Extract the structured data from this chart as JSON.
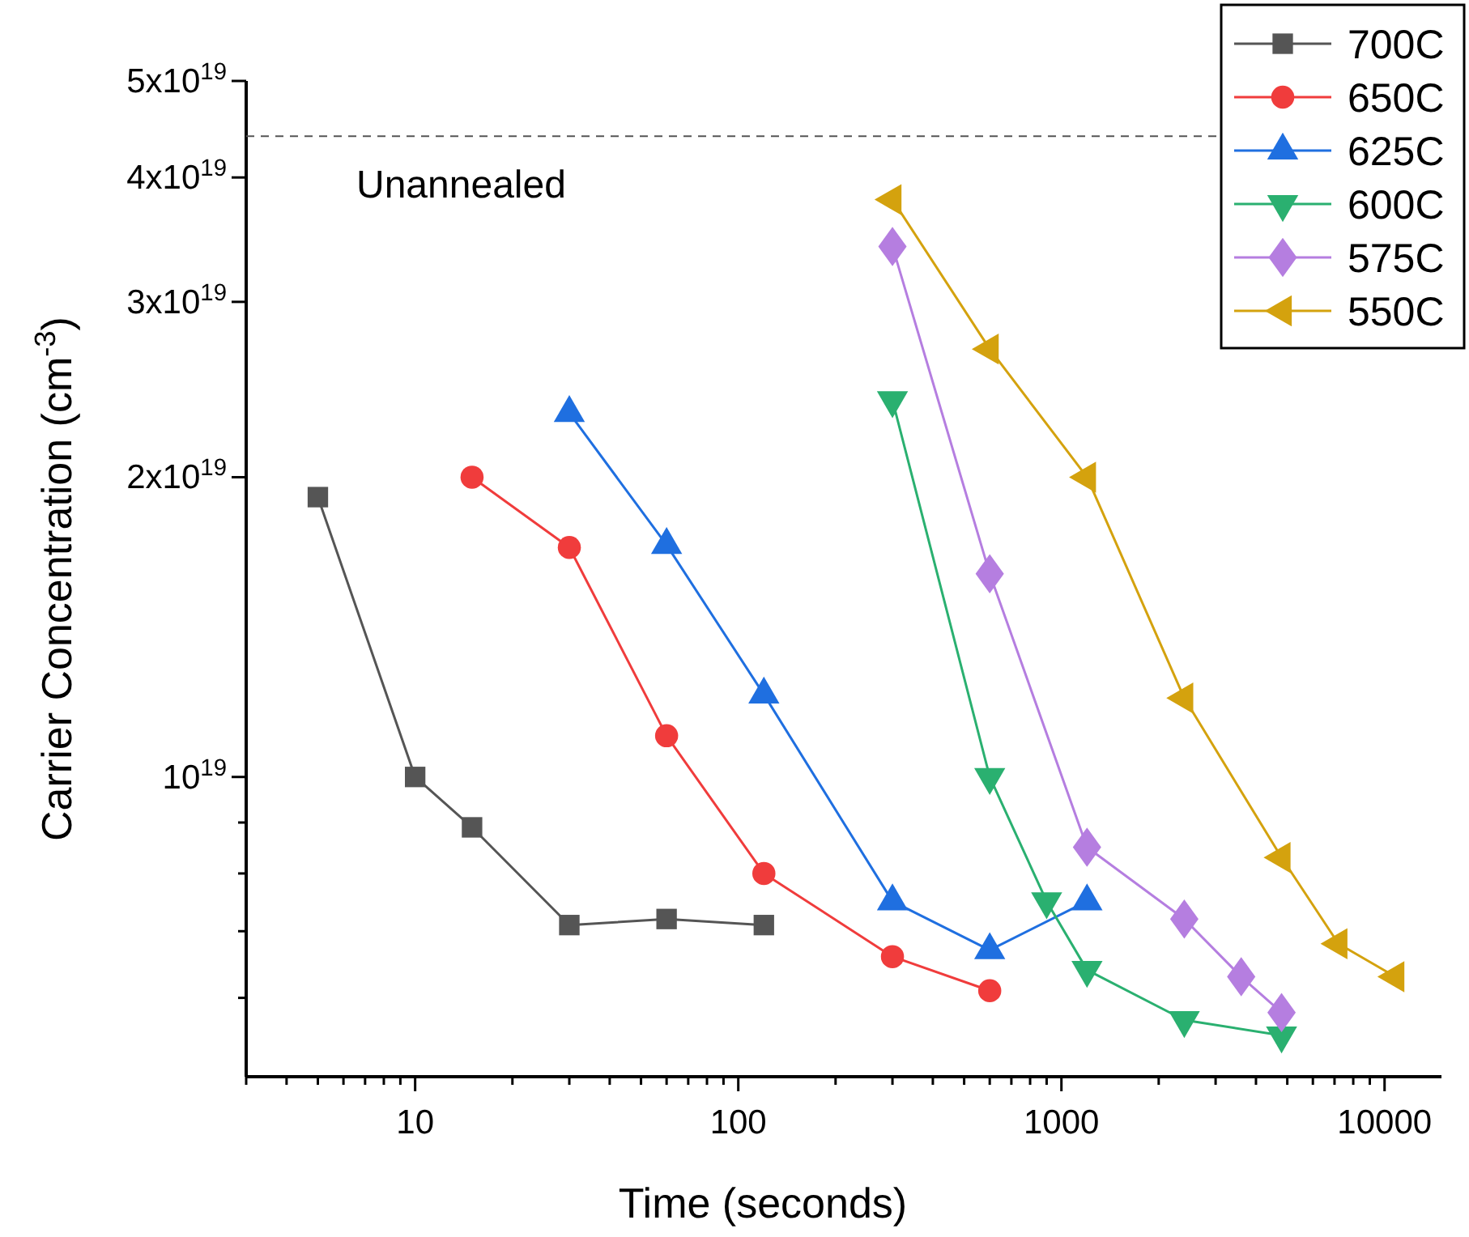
{
  "chart_data": {
    "type": "line",
    "xlabel": "Time (seconds)",
    "ylabel": "Carrier Concentration (cm$^{-3}$)",
    "log": "xy",
    "legend": "top right",
    "grid": false,
    "line_style": "solid",
    "xlim": [
      3,
      15000
    ],
    "ylim": [
      5e+18,
      5e+19
    ],
    "xticks": [
      {
        "value": 3,
        "label": null
      },
      {
        "value": 4,
        "label": null
      },
      {
        "value": 5,
        "label": null
      },
      {
        "value": 6,
        "label": null
      },
      {
        "value": 7,
        "label": null
      },
      {
        "value": 8,
        "label": null
      },
      {
        "value": 9,
        "label": null
      },
      10,
      {
        "value": 20,
        "label": null
      },
      {
        "value": 30,
        "label": null
      },
      {
        "value": 40,
        "label": null
      },
      {
        "value": 50,
        "label": null
      },
      {
        "value": 60,
        "label": null
      },
      {
        "value": 70,
        "label": null
      },
      {
        "value": 80,
        "label": null
      },
      {
        "value": 90,
        "label": null
      },
      100,
      {
        "value": 200,
        "label": null
      },
      {
        "value": 300,
        "label": null
      },
      {
        "value": 400,
        "label": null
      },
      {
        "value": 500,
        "label": null
      },
      {
        "value": 600,
        "label": null
      },
      {
        "value": 700,
        "label": null
      },
      {
        "value": 800,
        "label": null
      },
      {
        "value": 900,
        "label": null
      },
      1000,
      {
        "value": 2000,
        "label": null
      },
      {
        "value": 3000,
        "label": null
      },
      {
        "value": 4000,
        "label": null
      },
      {
        "value": 5000,
        "label": null
      },
      {
        "value": 6000,
        "label": null
      },
      {
        "value": 7000,
        "label": null
      },
      {
        "value": 8000,
        "label": null
      },
      {
        "value": 9000,
        "label": null
      },
      10000
    ],
    "yticks": [
      {
        "value": 6e+18,
        "label": null
      },
      {
        "value": 7e+18,
        "label": null
      },
      {
        "value": 8e+18,
        "label": null
      },
      {
        "value": 9e+18,
        "label": null
      },
      {
        "value": 1e+19,
        "label": "10$^{19}$"
      },
      {
        "value": 2e+19,
        "label": "2x10$^{19}$"
      },
      {
        "value": 3e+19,
        "label": "3x10$^{19}$"
      },
      {
        "value": 4e+19,
        "label": "4x10$^{19}$"
      },
      {
        "value": 5e+19,
        "label": "5x10$^{19}$"
      }
    ],
    "ref_lines": [
      {
        "axis": "y",
        "value": 4.4e+19,
        "label": "Unannealed",
        "line_style": "dashed",
        "color": "#555555"
      }
    ],
    "series": [
      {
        "name": "700C",
        "color": "#555555",
        "marker": "square",
        "x": [
          5,
          10,
          15,
          30,
          60,
          120
        ],
        "values": [
          1.91e+19,
          1e+19,
          8.9e+18,
          7.1e+18,
          7.2e+18,
          7.1e+18
        ]
      },
      {
        "name": "650C",
        "color": "#f03c3c",
        "marker": "circle",
        "x": [
          15,
          30,
          60,
          120,
          300,
          600
        ],
        "values": [
          2e+19,
          1.7e+19,
          1.1e+19,
          8e+18,
          6.6e+18,
          6.1e+18
        ]
      },
      {
        "name": "625C",
        "color": "#1f6fe0",
        "marker": "triangle",
        "x": [
          30,
          60,
          120,
          300,
          600,
          1200
        ],
        "values": [
          2.32e+19,
          1.71e+19,
          1.21e+19,
          7.5e+18,
          6.7e+18,
          7.5e+18
        ]
      },
      {
        "name": "600C",
        "color": "#2ab070",
        "marker": "triangle-down",
        "x": [
          300,
          600,
          900,
          1200,
          2400,
          4800
        ],
        "values": [
          2.39e+19,
          1e+19,
          7.5e+18,
          6.4e+18,
          5.7e+18,
          5.5e+18
        ]
      },
      {
        "name": "575C",
        "color": "#b57ee0",
        "marker": "diamond",
        "x": [
          300,
          600,
          1200,
          2400,
          3600,
          4800
        ],
        "values": [
          3.41e+19,
          1.6e+19,
          8.5e+18,
          7.2e+18,
          6.3e+18,
          5.8e+18
        ]
      },
      {
        "name": "550C",
        "color": "#d4a20e",
        "marker": "triangle-left",
        "x": [
          300,
          600,
          1200,
          2400,
          4800,
          7200,
          10800
        ],
        "values": [
          3.8e+19,
          2.69e+19,
          2e+19,
          1.2e+19,
          8.3e+18,
          6.8e+18,
          6.3e+18
        ]
      }
    ]
  }
}
